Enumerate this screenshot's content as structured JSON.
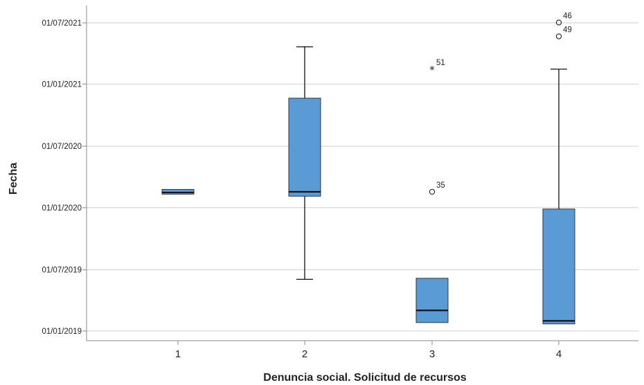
{
  "chart_data": {
    "type": "boxplot",
    "xlabel": "Denuncia social. Solicitud de recursos",
    "ylabel": "Fecha",
    "ylim": [
      "2018-12-20",
      "2021-08-20"
    ],
    "yticks": [
      "2019-01-01",
      "2019-07-01",
      "2020-01-01",
      "2020-07-01",
      "2021-01-01",
      "2021-07-01"
    ],
    "ytick_labels": [
      "01/01/2019",
      "01/07/2019",
      "01/01/2020",
      "01/07/2020",
      "01/01/2021",
      "01/07/2021"
    ],
    "grid": "horizontal",
    "box_color": "#5b9bd5",
    "categories": [
      "1",
      "2",
      "3",
      "4"
    ],
    "boxes": [
      {
        "category": "1",
        "whisker_low": "2020-02-10",
        "q1": "2020-02-10",
        "median": "2020-02-15",
        "q3": "2020-02-24",
        "whisker_high": "2020-02-24",
        "outliers": []
      },
      {
        "category": "2",
        "whisker_low": "2019-06-03",
        "q1": "2020-02-04",
        "median": "2020-02-17",
        "q3": "2020-11-20",
        "whisker_high": "2021-04-21",
        "outliers": []
      },
      {
        "category": "3",
        "whisker_low": "2019-01-26",
        "q1": "2019-01-26",
        "median": "2019-03-03",
        "q3": "2019-06-06",
        "whisker_high": "2019-06-06",
        "outliers": [
          {
            "label": "35",
            "value": "2020-02-17",
            "marker": "circle"
          },
          {
            "label": "51",
            "value": "2021-02-14",
            "marker": "star"
          }
        ]
      },
      {
        "category": "4",
        "whisker_low": "2019-01-22",
        "q1": "2019-01-22",
        "median": "2019-01-31",
        "q3": "2019-12-28",
        "whisker_high": "2021-02-14",
        "outliers": [
          {
            "label": "46",
            "value": "2021-07-02",
            "marker": "circle"
          },
          {
            "label": "49",
            "value": "2021-05-22",
            "marker": "circle"
          }
        ]
      }
    ]
  }
}
